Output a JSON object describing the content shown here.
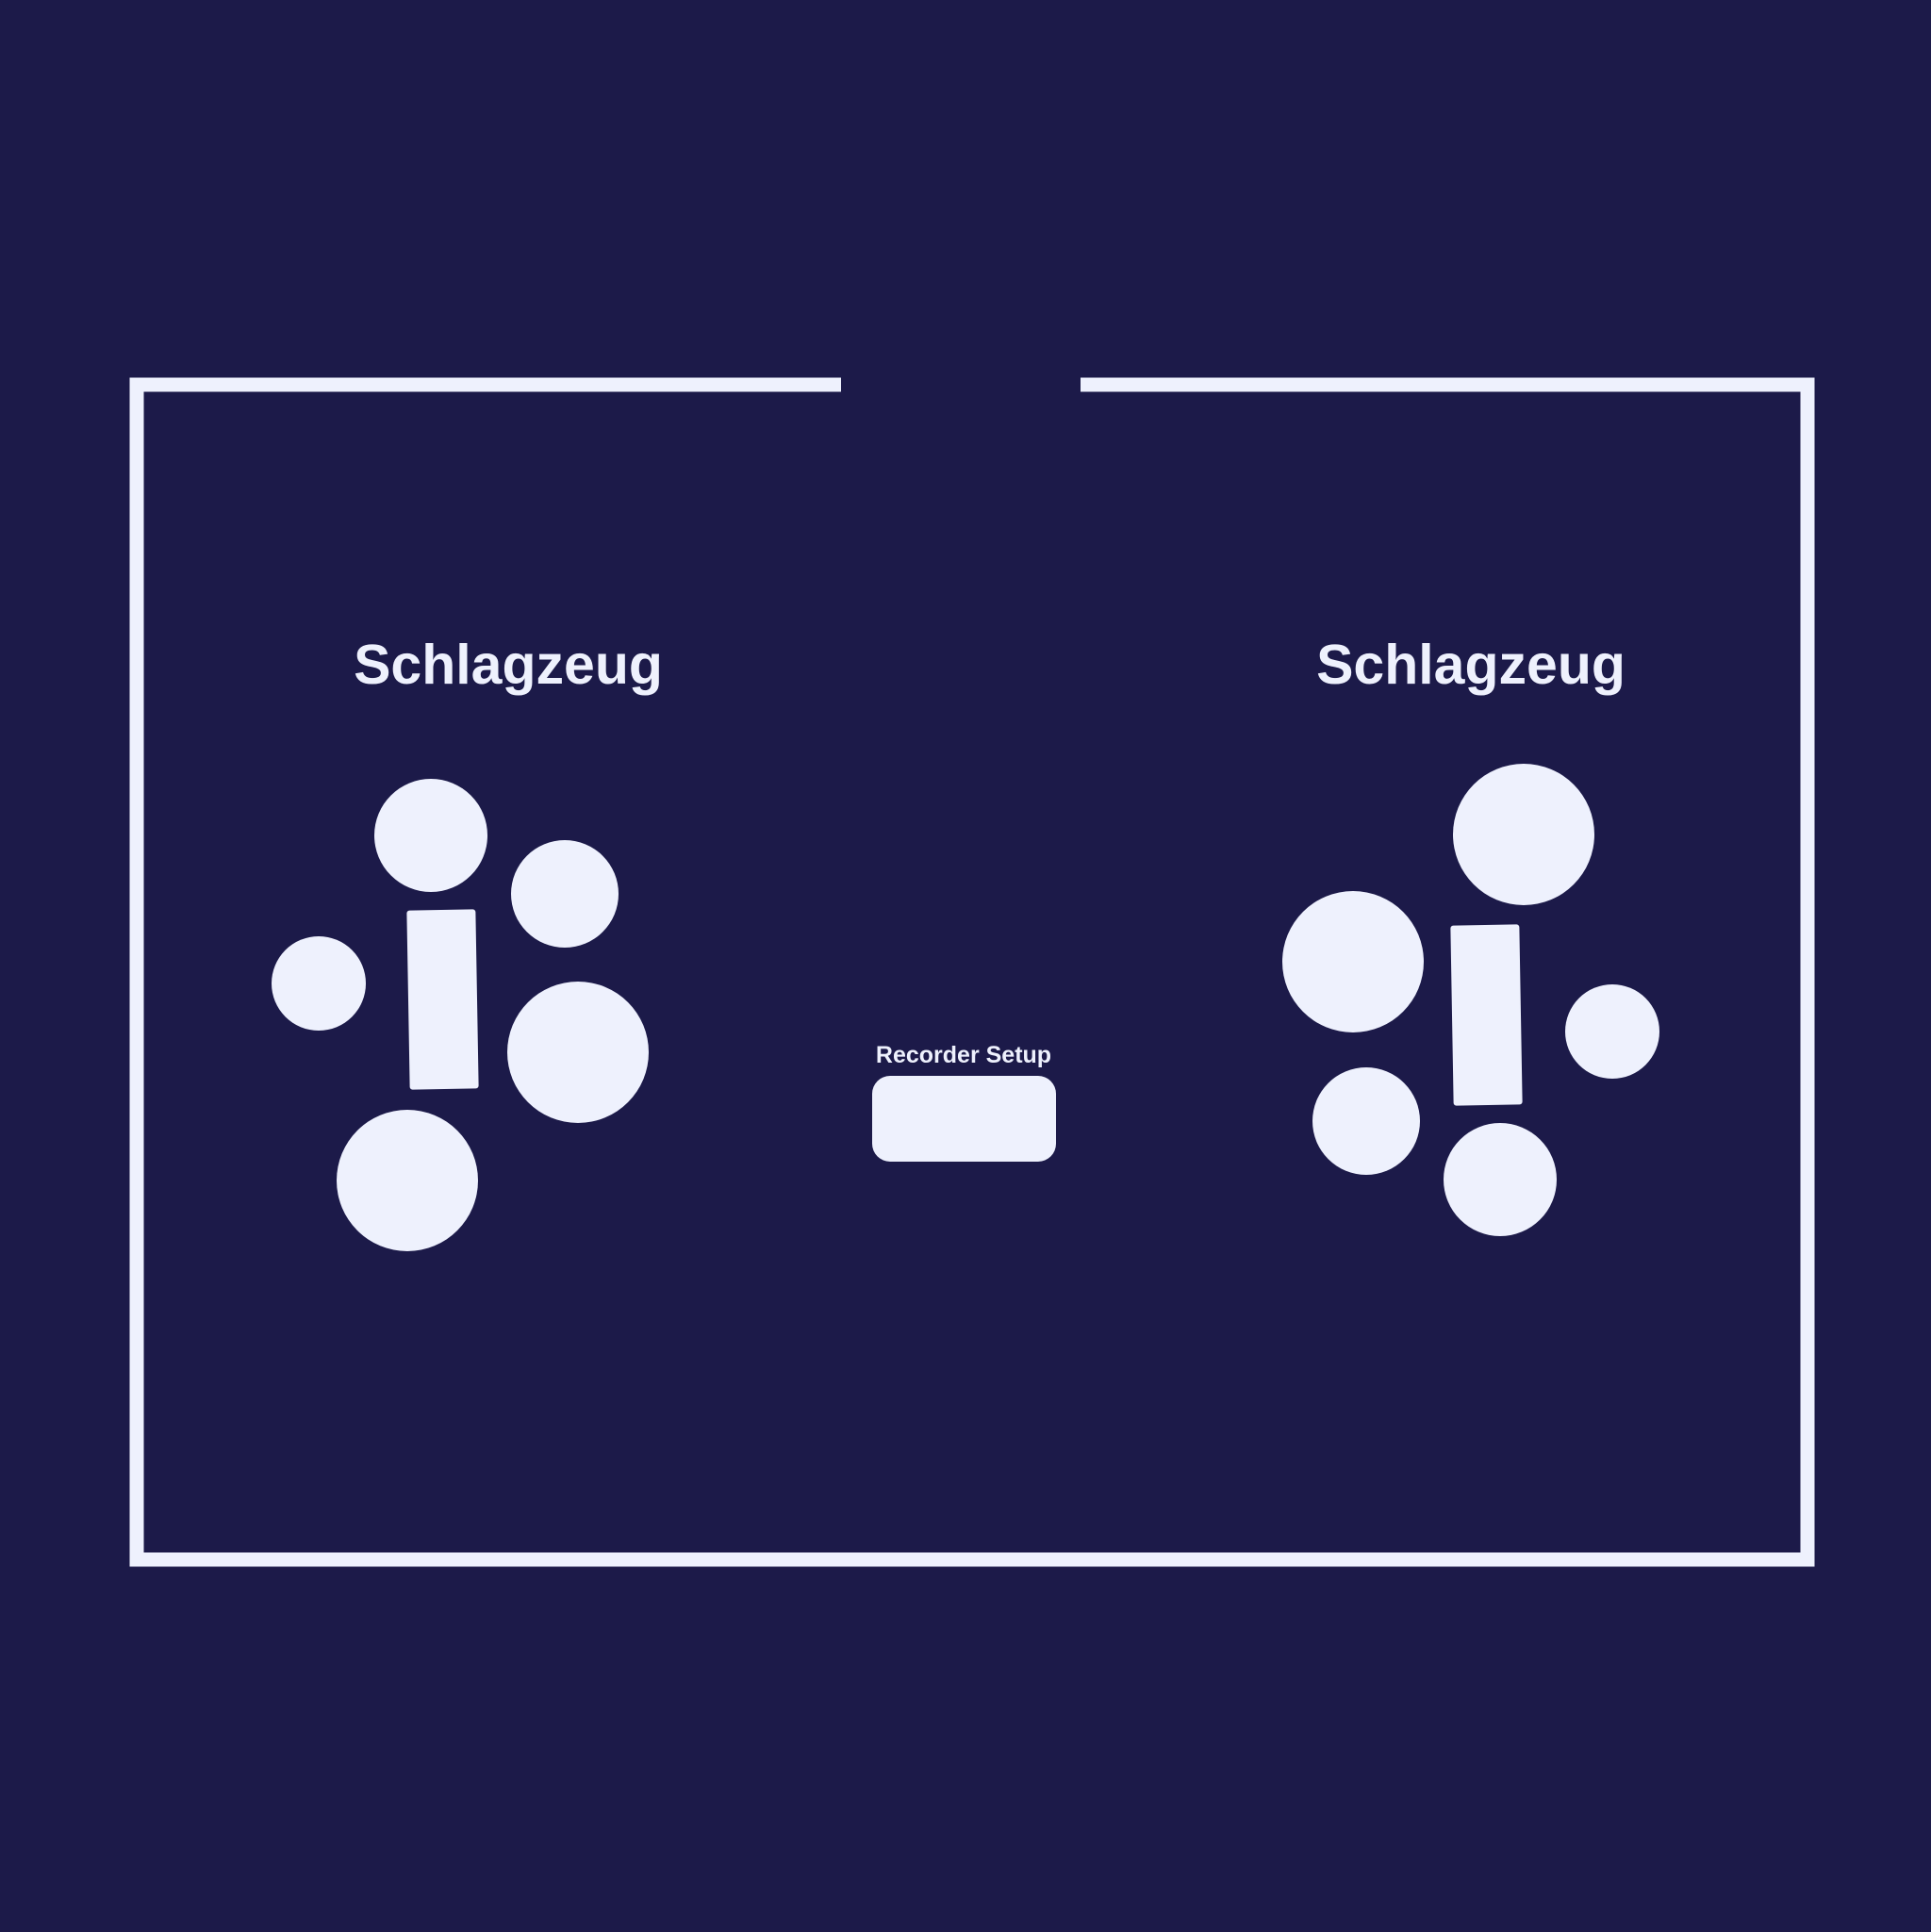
{
  "colors": {
    "background": "#1c1a49",
    "foreground": "#eef1fd"
  },
  "room": {
    "outline": "room-wall-outline",
    "opening": "door-opening"
  },
  "drum_kits": [
    {
      "label": "Schlagzeug",
      "pieces": [
        "drum-pad",
        "drum-pad",
        "drum-pad",
        "drum-pad",
        "drum-pad",
        "drum-stool"
      ]
    },
    {
      "label": "Schlagzeug",
      "pieces": [
        "drum-pad",
        "drum-pad",
        "drum-pad",
        "drum-pad",
        "drum-pad",
        "drum-stool"
      ]
    }
  ],
  "recorder": {
    "label": "Recorder Setup",
    "device": "recorder-device"
  }
}
